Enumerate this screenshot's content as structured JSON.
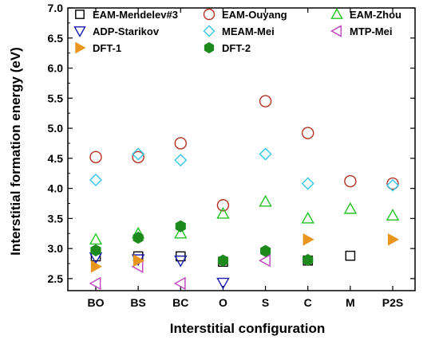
{
  "chart_data": {
    "type": "scatter",
    "xlabel": "Interstitial configuration",
    "ylabel": "Interstitial formation energy (eV)",
    "categories": [
      "BO",
      "BS",
      "BC",
      "O",
      "S",
      "C",
      "M",
      "P2S"
    ],
    "ylim": [
      2.3,
      7.0
    ],
    "yticks": [
      "2.5",
      "3.0",
      "3.5",
      "4.0",
      "4.5",
      "5.0",
      "5.5",
      "6.0",
      "6.5",
      "7.0"
    ],
    "legend_position": "top",
    "series": [
      {
        "name": "EAM-Mendelev#3",
        "marker": "square-open",
        "color": "#000000",
        "values": [
          2.87,
          2.87,
          2.87,
          2.78,
          null,
          2.8,
          2.88,
          null
        ]
      },
      {
        "name": "EAM-Ouyang",
        "marker": "circle-open",
        "color": "#b2331f",
        "values": [
          4.52,
          4.52,
          4.75,
          3.72,
          5.45,
          4.92,
          4.12,
          4.08
        ]
      },
      {
        "name": "EAM-Zhou",
        "marker": "triangle-up-open",
        "color": "#22c422",
        "values": [
          3.15,
          3.25,
          3.25,
          3.58,
          3.78,
          3.5,
          3.66,
          3.55
        ]
      },
      {
        "name": "ADP-Starikov",
        "marker": "triangle-down-open",
        "color": "#1a1aaa",
        "values": [
          2.85,
          2.82,
          2.8,
          2.43,
          null,
          null,
          null,
          null
        ]
      },
      {
        "name": "MEAM-Mei",
        "marker": "diamond-open",
        "color": "#33c6e8",
        "values": [
          4.14,
          4.57,
          4.47,
          null,
          4.57,
          4.08,
          null,
          4.05
        ]
      },
      {
        "name": "MTP-Mei",
        "marker": "triangle-left-open",
        "color": "#c040c0",
        "values": [
          2.42,
          2.7,
          2.42,
          null,
          2.8,
          null,
          null,
          null
        ]
      },
      {
        "name": "DFT-1",
        "marker": "triangle-right-filled",
        "color": "#e8961e",
        "values": [
          2.7,
          2.8,
          null,
          null,
          null,
          3.15,
          null,
          3.15
        ]
      },
      {
        "name": "DFT-2",
        "marker": "hexagon-filled",
        "color": "#1e8a1e",
        "values": [
          2.97,
          3.18,
          3.37,
          2.8,
          2.96,
          2.81,
          null,
          null
        ]
      }
    ]
  }
}
